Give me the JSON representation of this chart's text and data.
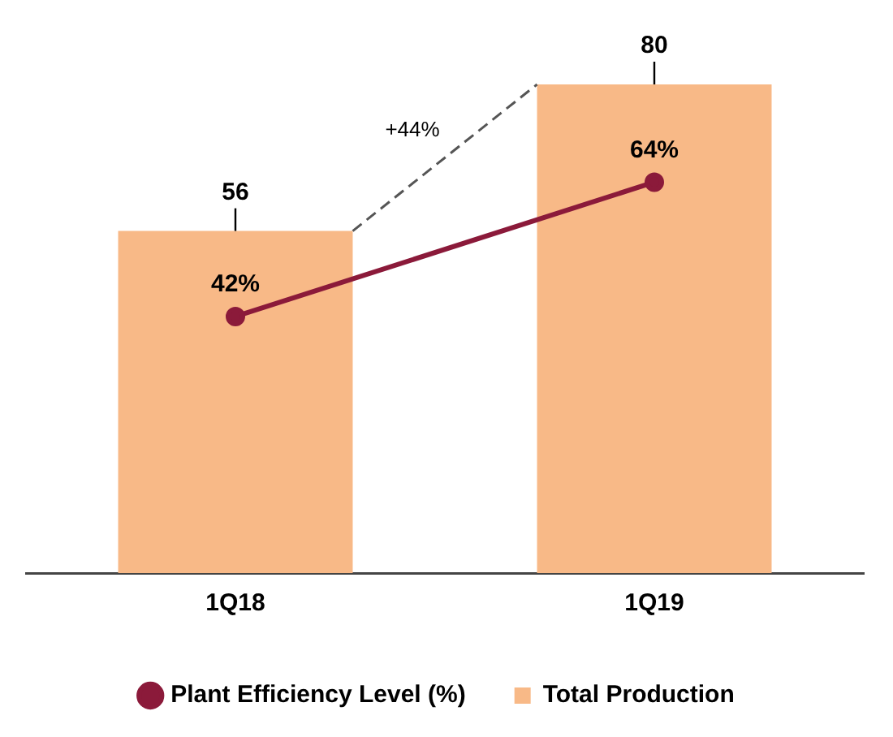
{
  "chart_data": {
    "type": "bar",
    "categories": [
      "1Q18",
      "1Q19"
    ],
    "series": [
      {
        "type": "line",
        "name": "Plant Efficiency Level (%)",
        "color": "#8b1a3a",
        "values": [
          42,
          64
        ],
        "value_labels": [
          "42%",
          "64%"
        ],
        "marker": "circle"
      },
      {
        "name": "Total Production",
        "color": "#f8b987",
        "values": [
          56,
          80
        ],
        "value_labels": [
          "56",
          "80"
        ]
      }
    ],
    "tick_labels": "x",
    "grid": false,
    "legend": "bottom",
    "annotations": [
      "+44%"
    ]
  }
}
